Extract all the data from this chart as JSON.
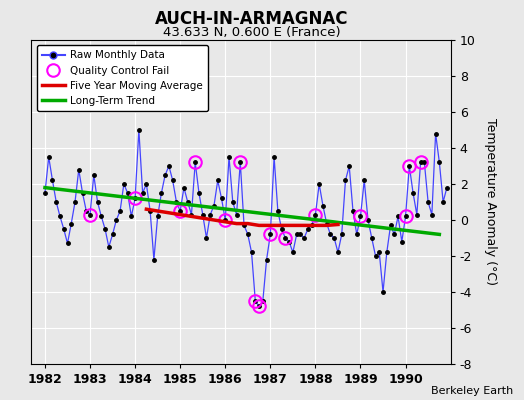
{
  "title": "AUCH-IN-ARMAGNAC",
  "subtitle": "43.633 N, 0.600 E (France)",
  "ylabel": "Temperature Anomaly (°C)",
  "credit": "Berkeley Earth",
  "ylim": [
    -8,
    10
  ],
  "xlim": [
    1981.7,
    1991.0
  ],
  "xticks": [
    1982,
    1983,
    1984,
    1985,
    1986,
    1987,
    1988,
    1989,
    1990
  ],
  "yticks": [
    -8,
    -6,
    -4,
    -2,
    0,
    2,
    4,
    6,
    8,
    10
  ],
  "bg_color": "#e8e8e8",
  "plot_bg_color": "#e8e8e8",
  "line_color": "#4444ff",
  "marker_color": "#000000",
  "qc_color": "#ff00ff",
  "moving_avg_color": "#dd0000",
  "trend_color": "#00aa00",
  "raw_monthly": [
    1.5,
    3.5,
    2.2,
    1.0,
    0.2,
    -0.5,
    -1.3,
    -0.2,
    1.0,
    2.8,
    1.5,
    0.5,
    0.3,
    2.5,
    1.0,
    0.2,
    -0.5,
    -1.5,
    -0.8,
    0.0,
    0.5,
    2.0,
    1.5,
    0.2,
    1.2,
    5.0,
    1.5,
    2.0,
    0.5,
    -2.2,
    0.2,
    1.5,
    2.5,
    3.0,
    2.2,
    1.0,
    0.5,
    1.8,
    1.0,
    0.3,
    3.2,
    1.5,
    0.3,
    -1.0,
    0.3,
    0.8,
    2.2,
    1.2,
    0.0,
    3.5,
    1.0,
    0.3,
    3.2,
    -0.3,
    -0.8,
    -1.8,
    -4.5,
    -4.8,
    -4.5,
    -2.2,
    -0.8,
    3.5,
    0.5,
    -0.5,
    -1.0,
    -1.2,
    -1.8,
    -0.8,
    -0.8,
    -1.0,
    -0.5,
    -0.3,
    0.3,
    2.0,
    0.8,
    -0.2,
    -0.8,
    -1.0,
    -1.8,
    -0.8,
    2.2,
    3.0,
    0.5,
    -0.8,
    0.2,
    2.2,
    0.0,
    -1.0,
    -2.0,
    -1.8,
    -4.0,
    -1.8,
    -0.3,
    -0.8,
    0.2,
    -1.2,
    0.2,
    3.0,
    1.5,
    0.3,
    3.2,
    3.2,
    1.0,
    0.3,
    4.8,
    3.2,
    1.0,
    1.8
  ],
  "qc_fail_indices": [
    12,
    24,
    36,
    40,
    48,
    52,
    56,
    57,
    60,
    64,
    72,
    84,
    96,
    97,
    100,
    108
  ],
  "trend_x": [
    1982.0,
    1990.75
  ],
  "trend_y": [
    1.8,
    -0.8
  ],
  "moving_avg_x": [
    1984.25,
    1984.5,
    1984.75,
    1985.0,
    1985.25,
    1985.5,
    1985.75,
    1986.0,
    1986.25,
    1986.5,
    1986.75,
    1987.0,
    1987.25,
    1987.5,
    1987.75,
    1988.0,
    1988.25,
    1988.5
  ],
  "moving_avg_y": [
    0.6,
    0.5,
    0.4,
    0.3,
    0.2,
    0.1,
    0.0,
    -0.1,
    -0.2,
    -0.2,
    -0.3,
    -0.3,
    -0.3,
    -0.3,
    -0.3,
    -0.3,
    -0.3,
    -0.25
  ]
}
